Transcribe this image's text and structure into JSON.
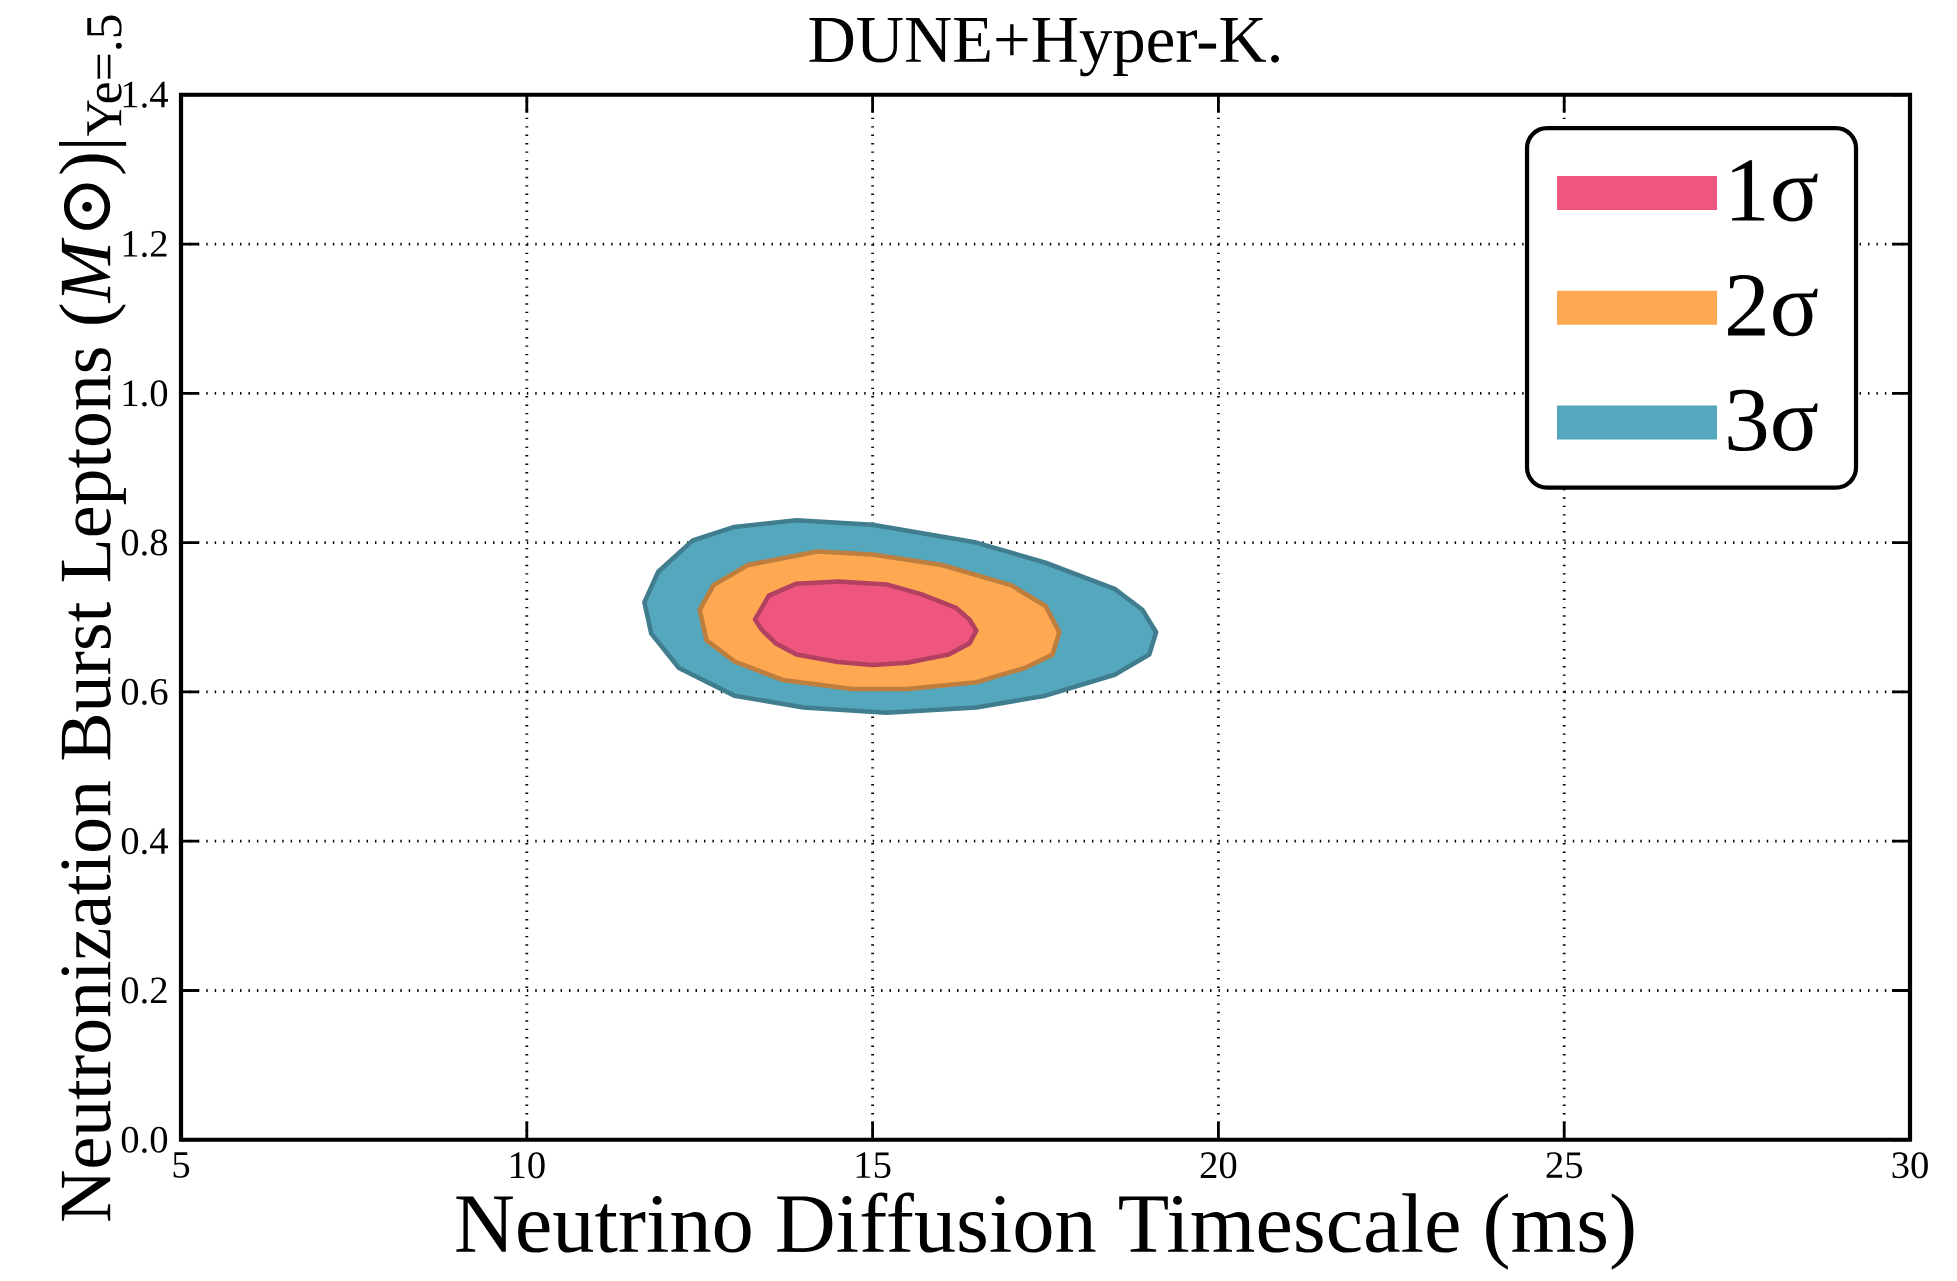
{
  "chart_data": {
    "type": "area",
    "title": "DUNE+Hyper-K.",
    "xlabel": "Neutrino Diffusion Timescale (ms)",
    "ylabel": "Neutronization Burst Leptons (*M*⊙)|$_{Ye=.5}$",
    "xlim": [
      5,
      30
    ],
    "ylim": [
      0,
      1.4
    ],
    "xticks": [
      5,
      10,
      15,
      20,
      25,
      30
    ],
    "yticks": [
      {
        "value": 0,
        "label": "0.0"
      },
      {
        "value": 0.2,
        "label": "0.2"
      },
      {
        "value": 0.4,
        "label": "0.4"
      },
      {
        "value": 0.6,
        "label": "0.6"
      },
      {
        "value": 0.8,
        "label": "0.8"
      },
      {
        "value": 1.0,
        "label": "1.0"
      },
      {
        "value": 1.2,
        "label": "1.2"
      },
      {
        "value": 1.4,
        "label": "1.4"
      }
    ],
    "grid": true,
    "legend": "top right",
    "series": [
      {
        "name": "1σ",
        "color": "#ee5680",
        "x": [
          14.5,
          15.2,
          15.7,
          16.2,
          16.4,
          16.5,
          16.4,
          16.1,
          15.5,
          15.0,
          14.5,
          13.9,
          13.6,
          13.4,
          13.3,
          13.4,
          13.5,
          13.9
        ],
        "values": [
          0.748,
          0.744,
          0.731,
          0.713,
          0.697,
          0.682,
          0.665,
          0.65,
          0.639,
          0.636,
          0.64,
          0.65,
          0.665,
          0.683,
          0.697,
          0.713,
          0.729,
          0.745
        ]
      },
      {
        "name": "2σ",
        "color": "#fea852",
        "x": [
          14.2,
          15.0,
          16.0,
          17.0,
          17.5,
          17.7,
          17.6,
          17.2,
          16.5,
          15.5,
          14.7,
          13.7,
          13.0,
          12.6,
          12.5,
          12.7,
          13.2
        ],
        "values": [
          0.788,
          0.784,
          0.77,
          0.743,
          0.715,
          0.68,
          0.65,
          0.632,
          0.613,
          0.604,
          0.604,
          0.616,
          0.641,
          0.669,
          0.71,
          0.743,
          0.77
        ]
      },
      {
        "name": "3σ",
        "color": "#55a7bd",
        "x": [
          13.9,
          15.0,
          16.5,
          17.5,
          18.5,
          18.9,
          19.1,
          19.0,
          18.5,
          17.5,
          16.5,
          15.2,
          14.0,
          13.0,
          12.2,
          11.8,
          11.7,
          11.9,
          12.4,
          13.0
        ],
        "values": [
          0.83,
          0.824,
          0.8,
          0.773,
          0.738,
          0.71,
          0.68,
          0.65,
          0.623,
          0.595,
          0.579,
          0.572,
          0.579,
          0.595,
          0.632,
          0.678,
          0.72,
          0.761,
          0.803,
          0.821
        ]
      }
    ]
  }
}
